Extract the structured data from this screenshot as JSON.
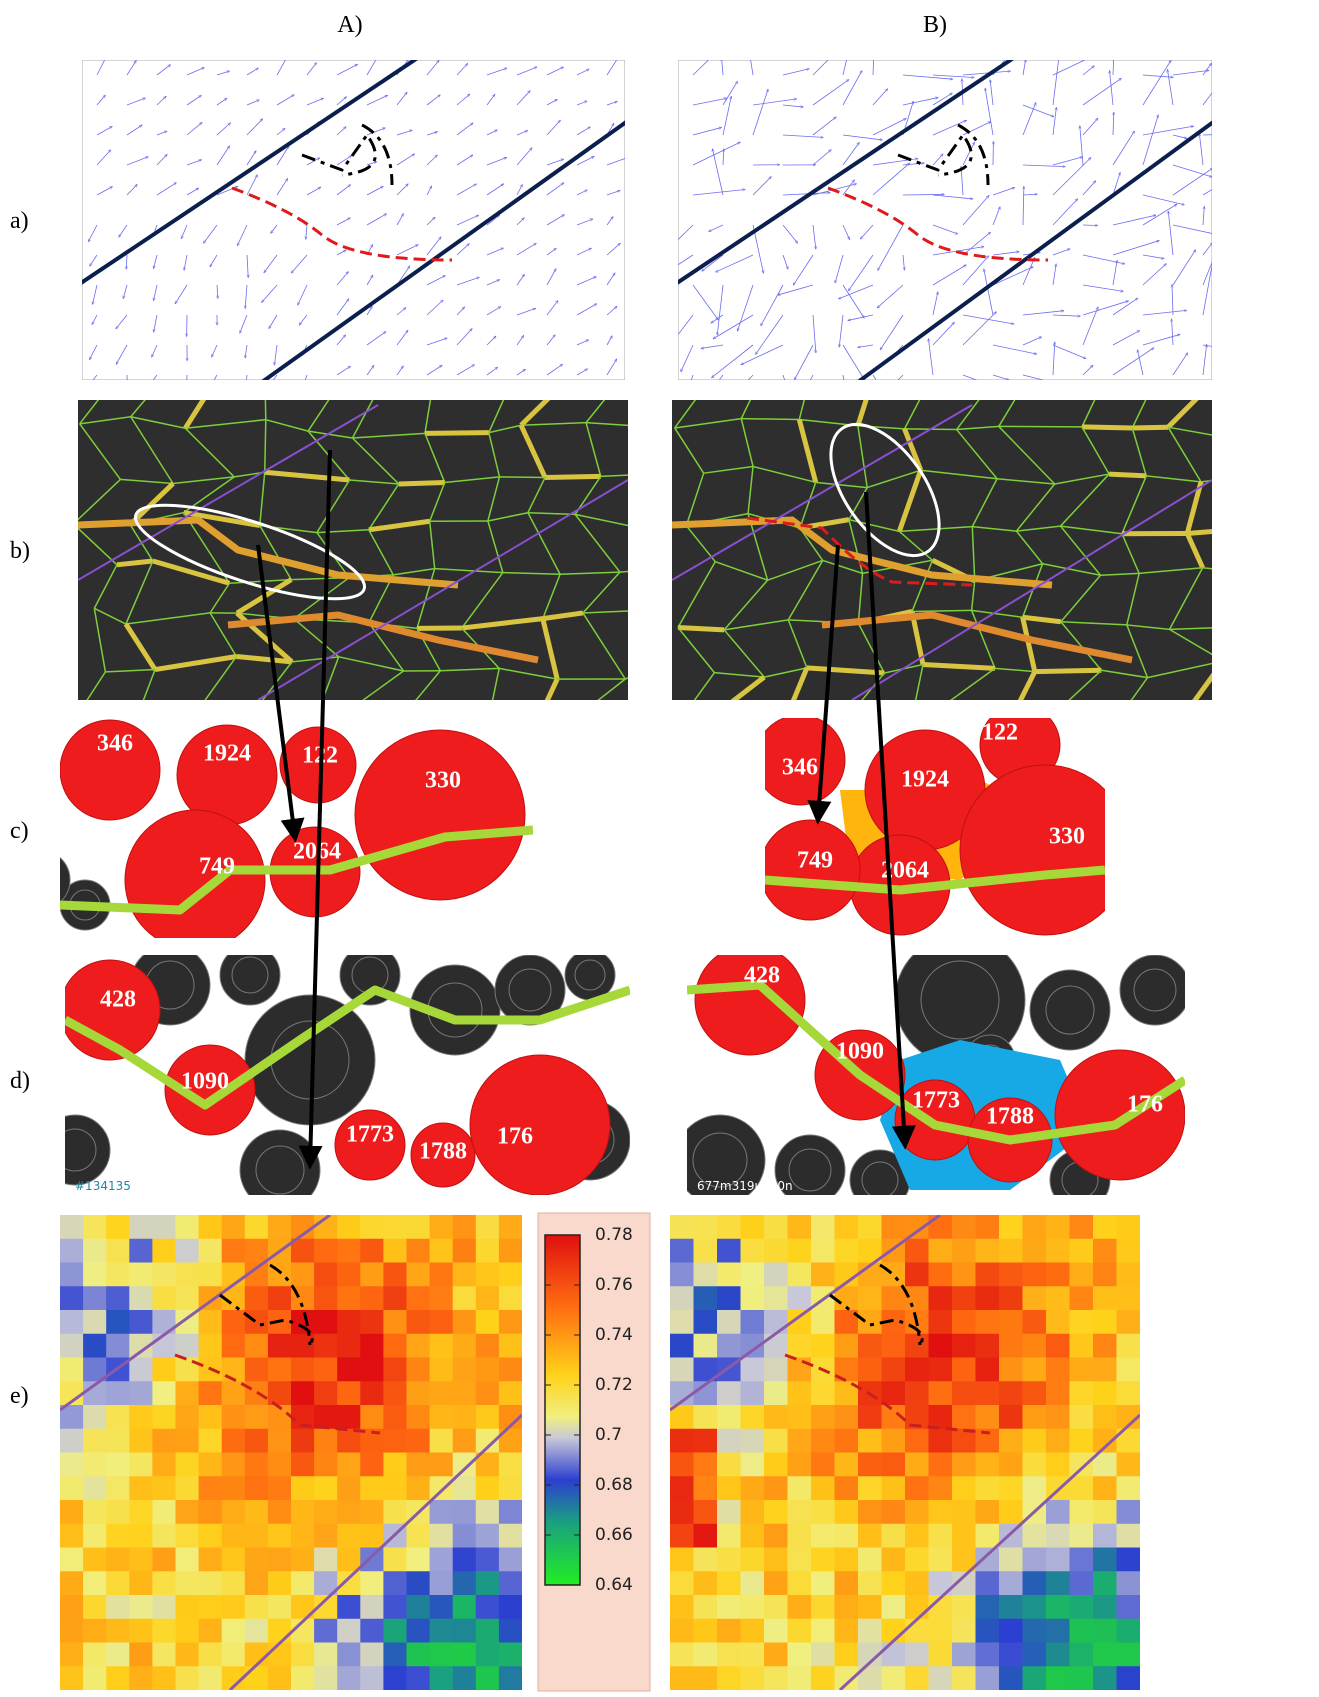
{
  "columns": [
    "A)",
    "B)"
  ],
  "rows": [
    "a)",
    "b)",
    "c)",
    "d)",
    "e)"
  ],
  "panel_c": {
    "A": [
      "346",
      "1924",
      "122",
      "330",
      "2064",
      "749"
    ],
    "B": [
      "346",
      "1924",
      "122",
      "330",
      "2064",
      "749"
    ]
  },
  "panel_d": {
    "A": [
      "428",
      "1090",
      "1773",
      "1788",
      "176"
    ],
    "B": [
      "428",
      "1090",
      "1773",
      "1788",
      "176"
    ]
  },
  "overlay_text": {
    "A": "#134135",
    "B": "677m319u130n"
  },
  "colorbar": {
    "lim": [
      0.64,
      0.78
    ],
    "ticks": [
      0.64,
      0.66,
      0.68,
      0.7,
      0.72,
      0.74,
      0.76,
      0.78
    ]
  }
}
